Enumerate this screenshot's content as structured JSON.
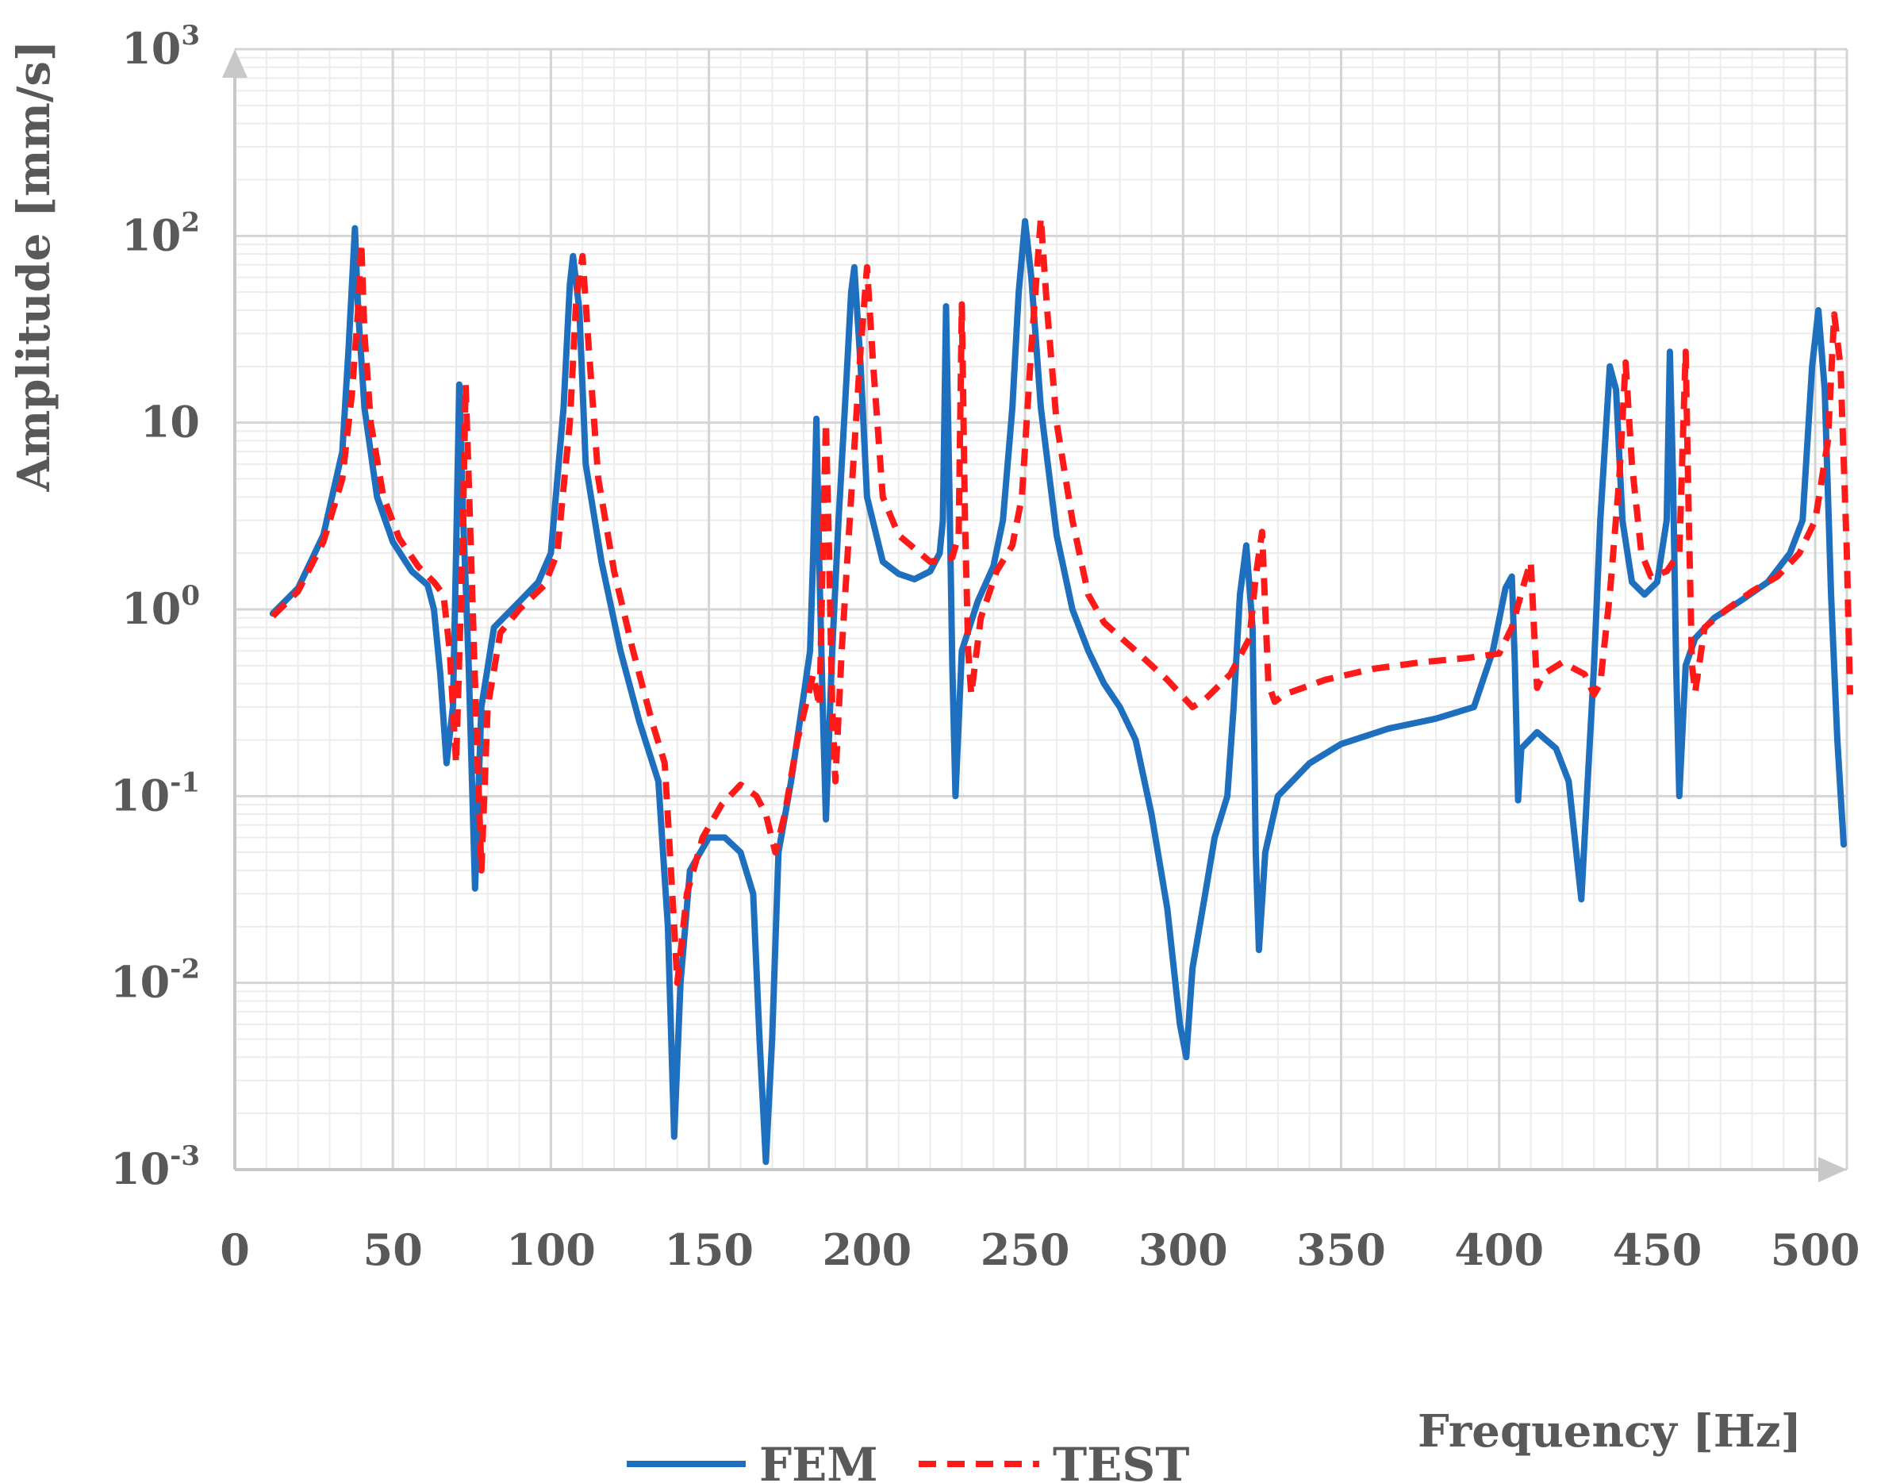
{
  "chart_data": {
    "type": "line",
    "xlabel": "Frequency [Hz]",
    "ylabel": "Amplitude [mm/s]",
    "xlim": [
      0,
      510
    ],
    "ylim": [
      0.001,
      1000
    ],
    "yscale": "log",
    "grid": true,
    "legend_position": "bottom",
    "x_ticks": [
      "0",
      "50",
      "100",
      "150",
      "200",
      "250",
      "300",
      "350",
      "400",
      "450",
      "500"
    ],
    "y_ticks": [
      {
        "base": "10",
        "exp": "-3",
        "value": 0.001
      },
      {
        "base": "10",
        "exp": "-2",
        "value": 0.01
      },
      {
        "base": "10",
        "exp": "-1",
        "value": 0.1
      },
      {
        "base": "10",
        "exp": "0",
        "value": 1
      },
      {
        "base": "10",
        "exp": "",
        "value": 10
      },
      {
        "base": "10",
        "exp": "2",
        "value": 100
      },
      {
        "base": "10",
        "exp": "3",
        "value": 1000
      }
    ],
    "series": [
      {
        "name": "FEM",
        "color": "#1f6fbf",
        "style": "solid",
        "points": [
          [
            12,
            0.95
          ],
          [
            20,
            1.3
          ],
          [
            28,
            2.5
          ],
          [
            34,
            7
          ],
          [
            36,
            25
          ],
          [
            38,
            110
          ],
          [
            39,
            40
          ],
          [
            41,
            12
          ],
          [
            45,
            4
          ],
          [
            50,
            2.3
          ],
          [
            56,
            1.6
          ],
          [
            61,
            1.35
          ],
          [
            63,
            1.0
          ],
          [
            65,
            0.45
          ],
          [
            67,
            0.15
          ],
          [
            69,
            0.3
          ],
          [
            70,
            2
          ],
          [
            71,
            16
          ],
          [
            72,
            4
          ],
          [
            74,
            0.5
          ],
          [
            76,
            0.032
          ],
          [
            78,
            0.3
          ],
          [
            82,
            0.8
          ],
          [
            90,
            1.1
          ],
          [
            96,
            1.4
          ],
          [
            100,
            2
          ],
          [
            104,
            12
          ],
          [
            106,
            55
          ],
          [
            107,
            78
          ],
          [
            109,
            40
          ],
          [
            111,
            6
          ],
          [
            116,
            1.8
          ],
          [
            122,
            0.6
          ],
          [
            128,
            0.25
          ],
          [
            134,
            0.12
          ],
          [
            137,
            0.02
          ],
          [
            139,
            0.0015
          ],
          [
            141,
            0.01
          ],
          [
            144,
            0.04
          ],
          [
            150,
            0.06
          ],
          [
            155,
            0.06
          ],
          [
            160,
            0.05
          ],
          [
            164,
            0.03
          ],
          [
            166,
            0.005
          ],
          [
            168,
            0.0011
          ],
          [
            170,
            0.005
          ],
          [
            172,
            0.05
          ],
          [
            176,
            0.12
          ],
          [
            180,
            0.35
          ],
          [
            182,
            0.6
          ],
          [
            183,
            2
          ],
          [
            184,
            10.5
          ],
          [
            185,
            1.5
          ],
          [
            186,
            0.3
          ],
          [
            187,
            0.075
          ],
          [
            189,
            0.6
          ],
          [
            191,
            3
          ],
          [
            193,
            12
          ],
          [
            195,
            50
          ],
          [
            196,
            68
          ],
          [
            198,
            20
          ],
          [
            200,
            4
          ],
          [
            205,
            1.8
          ],
          [
            210,
            1.55
          ],
          [
            215,
            1.45
          ],
          [
            220,
            1.6
          ],
          [
            223,
            2
          ],
          [
            224,
            3
          ],
          [
            225,
            42
          ],
          [
            226,
            5
          ],
          [
            227,
            0.5
          ],
          [
            228,
            0.1
          ],
          [
            230,
            0.6
          ],
          [
            235,
            1.1
          ],
          [
            240,
            1.7
          ],
          [
            243,
            3
          ],
          [
            246,
            12
          ],
          [
            248,
            50
          ],
          [
            250,
            120
          ],
          [
            252,
            60
          ],
          [
            255,
            12
          ],
          [
            260,
            2.5
          ],
          [
            265,
            1
          ],
          [
            270,
            0.6
          ],
          [
            275,
            0.4
          ],
          [
            280,
            0.3
          ],
          [
            285,
            0.2
          ],
          [
            290,
            0.08
          ],
          [
            295,
            0.025
          ],
          [
            299,
            0.006
          ],
          [
            301,
            0.004
          ],
          [
            303,
            0.012
          ],
          [
            307,
            0.03
          ],
          [
            310,
            0.06
          ],
          [
            314,
            0.1
          ],
          [
            316,
            0.3
          ],
          [
            318,
            1.2
          ],
          [
            320,
            2.2
          ],
          [
            322,
            0.8
          ],
          [
            323,
            0.05
          ],
          [
            324,
            0.015
          ],
          [
            326,
            0.05
          ],
          [
            330,
            0.1
          ],
          [
            340,
            0.15
          ],
          [
            350,
            0.19
          ],
          [
            365,
            0.23
          ],
          [
            380,
            0.26
          ],
          [
            392,
            0.3
          ],
          [
            398,
            0.6
          ],
          [
            402,
            1.3
          ],
          [
            404,
            1.5
          ],
          [
            405,
            0.5
          ],
          [
            406,
            0.095
          ],
          [
            407,
            0.18
          ],
          [
            412,
            0.22
          ],
          [
            418,
            0.18
          ],
          [
            422,
            0.12
          ],
          [
            426,
            0.028
          ],
          [
            428,
            0.12
          ],
          [
            430,
            0.5
          ],
          [
            432,
            3
          ],
          [
            435,
            20
          ],
          [
            437,
            15
          ],
          [
            439,
            3
          ],
          [
            442,
            1.4
          ],
          [
            446,
            1.2
          ],
          [
            450,
            1.4
          ],
          [
            453,
            3
          ],
          [
            454,
            24
          ],
          [
            455,
            5
          ],
          [
            456,
            0.5
          ],
          [
            457,
            0.1
          ],
          [
            459,
            0.5
          ],
          [
            462,
            0.7
          ],
          [
            468,
            0.9
          ],
          [
            476,
            1.1
          ],
          [
            485,
            1.4
          ],
          [
            492,
            2
          ],
          [
            496,
            3
          ],
          [
            499,
            20
          ],
          [
            501,
            40
          ],
          [
            503,
            15
          ],
          [
            505,
            1.2
          ],
          [
            507,
            0.2
          ],
          [
            509,
            0.055
          ]
        ]
      },
      {
        "name": "TEST",
        "color": "#ff1a1a",
        "style": "dashed",
        "points": [
          [
            12,
            0.92
          ],
          [
            20,
            1.25
          ],
          [
            28,
            2.3
          ],
          [
            34,
            5
          ],
          [
            37,
            14
          ],
          [
            39,
            40
          ],
          [
            40,
            92
          ],
          [
            41,
            30
          ],
          [
            43,
            10
          ],
          [
            47,
            4
          ],
          [
            52,
            2.4
          ],
          [
            58,
            1.7
          ],
          [
            63,
            1.4
          ],
          [
            66,
            1.2
          ],
          [
            68,
            0.6
          ],
          [
            70,
            0.15
          ],
          [
            72,
            2
          ],
          [
            73,
            16
          ],
          [
            74,
            5
          ],
          [
            76,
            0.4
          ],
          [
            78,
            0.04
          ],
          [
            80,
            0.3
          ],
          [
            84,
            0.75
          ],
          [
            90,
            1.0
          ],
          [
            98,
            1.35
          ],
          [
            102,
            2
          ],
          [
            106,
            10
          ],
          [
            108,
            45
          ],
          [
            110,
            78
          ],
          [
            112,
            25
          ],
          [
            115,
            5
          ],
          [
            120,
            1.6
          ],
          [
            126,
            0.6
          ],
          [
            132,
            0.25
          ],
          [
            136,
            0.15
          ],
          [
            138,
            0.04
          ],
          [
            140,
            0.01
          ],
          [
            143,
            0.03
          ],
          [
            148,
            0.06
          ],
          [
            154,
            0.09
          ],
          [
            160,
            0.115
          ],
          [
            165,
            0.1
          ],
          [
            168,
            0.08
          ],
          [
            171,
            0.05
          ],
          [
            174,
            0.08
          ],
          [
            178,
            0.2
          ],
          [
            183,
            0.45
          ],
          [
            185,
            0.3
          ],
          [
            186,
            2
          ],
          [
            187,
            10
          ],
          [
            188,
            2
          ],
          [
            189,
            0.3
          ],
          [
            190,
            0.12
          ],
          [
            192,
            0.6
          ],
          [
            195,
            4
          ],
          [
            198,
            25
          ],
          [
            200,
            68
          ],
          [
            202,
            20
          ],
          [
            205,
            4
          ],
          [
            210,
            2.5
          ],
          [
            220,
            1.8
          ],
          [
            227,
            1.9
          ],
          [
            229,
            2.5
          ],
          [
            230,
            43
          ],
          [
            231,
            3
          ],
          [
            232,
            0.6
          ],
          [
            233,
            0.35
          ],
          [
            236,
            0.9
          ],
          [
            241,
            1.6
          ],
          [
            246,
            2.2
          ],
          [
            249,
            4
          ],
          [
            252,
            25
          ],
          [
            255,
            125
          ],
          [
            257,
            40
          ],
          [
            260,
            10
          ],
          [
            265,
            3
          ],
          [
            270,
            1.2
          ],
          [
            275,
            0.85
          ],
          [
            285,
            0.6
          ],
          [
            295,
            0.42
          ],
          [
            303,
            0.3
          ],
          [
            307,
            0.33
          ],
          [
            315,
            0.45
          ],
          [
            321,
            0.7
          ],
          [
            323,
            1.5
          ],
          [
            325,
            2.6
          ],
          [
            326,
            1
          ],
          [
            327,
            0.4
          ],
          [
            329,
            0.32
          ],
          [
            332,
            0.35
          ],
          [
            345,
            0.42
          ],
          [
            360,
            0.48
          ],
          [
            375,
            0.52
          ],
          [
            390,
            0.55
          ],
          [
            400,
            0.58
          ],
          [
            404,
            0.8
          ],
          [
            408,
            1.4
          ],
          [
            410,
            1.8
          ],
          [
            411,
            0.8
          ],
          [
            412,
            0.38
          ],
          [
            414,
            0.45
          ],
          [
            420,
            0.52
          ],
          [
            427,
            0.45
          ],
          [
            430,
            0.35
          ],
          [
            432,
            0.4
          ],
          [
            435,
            1.2
          ],
          [
            438,
            5
          ],
          [
            440,
            21
          ],
          [
            442,
            6
          ],
          [
            445,
            2
          ],
          [
            448,
            1.5
          ],
          [
            453,
            1.6
          ],
          [
            457,
            2
          ],
          [
            459,
            24
          ],
          [
            460,
            3
          ],
          [
            461,
            0.5
          ],
          [
            462,
            0.36
          ],
          [
            465,
            0.8
          ],
          [
            472,
            1.0
          ],
          [
            480,
            1.25
          ],
          [
            488,
            1.5
          ],
          [
            495,
            2
          ],
          [
            500,
            3
          ],
          [
            504,
            8
          ],
          [
            506,
            38
          ],
          [
            508,
            20
          ],
          [
            510,
            2
          ],
          [
            511,
            0.35
          ]
        ]
      }
    ]
  }
}
